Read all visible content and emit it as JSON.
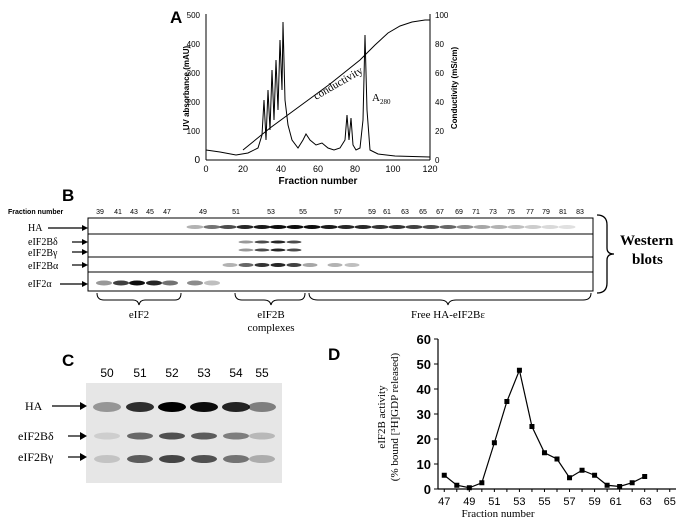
{
  "panels": {
    "A": "A",
    "B": "B",
    "C": "C",
    "D": "D"
  },
  "panel_a": {
    "ylabel_left": "UV absorbance (mAU)",
    "ylabel_right": "Conductivity (mS/cm)",
    "xlabel": "Fraction number",
    "conductivity_label": "conductivity",
    "a280_label": "A",
    "a280_sub": "280",
    "x_ticks": [
      "0",
      "20",
      "40",
      "60",
      "80",
      "100",
      "120"
    ],
    "y_left_ticks": [
      "0",
      "100",
      "200",
      "300",
      "400",
      "500"
    ],
    "y_right_ticks": [
      "0",
      "20",
      "40",
      "60",
      "80",
      "100"
    ]
  },
  "panel_b": {
    "fraction_label": "Fraction number",
    "fractions": [
      "39",
      "41",
      "43",
      "45",
      "47",
      "49",
      "51",
      "53",
      "55",
      "57",
      "59",
      "61",
      "63",
      "65",
      "67",
      "69",
      "71",
      "73",
      "75",
      "77",
      "79",
      "81",
      "83"
    ],
    "rows": [
      "HA",
      "eIF2Bδ",
      "eIF2Bγ",
      "eIF2Bα",
      "eIF2α"
    ],
    "western_1": "Western",
    "western_2": "blots",
    "group_eif2": "eIF2",
    "group_eif2b_1": "eIF2B",
    "group_eif2b_2": "complexes",
    "group_free": "Free HA-eIF2Bε"
  },
  "panel_c": {
    "lanes": [
      "50",
      "51",
      "52",
      "53",
      "54",
      "55"
    ],
    "labels": [
      "HA",
      "eIF2Bδ",
      "eIF2Bγ"
    ]
  },
  "chart_data": {
    "type": "line",
    "title": "",
    "xlabel": "Fraction number",
    "ylabel": "eIF2B activity (% bound [³H]GDP released)",
    "ylabel_line1": "eIF2B activity",
    "ylabel_line2": "(% bound [³H]GDP released)",
    "x_tick_labels": [
      "47",
      "49",
      "51",
      "53",
      "55",
      "57",
      "59",
      "61",
      "63",
      "65"
    ],
    "y_tick_labels": [
      "0",
      "10",
      "20",
      "30",
      "40",
      "50",
      "60"
    ],
    "xlim": [
      46.5,
      65.5
    ],
    "ylim": [
      0,
      60
    ],
    "grid": false,
    "x": [
      47,
      48,
      49,
      50,
      51,
      52,
      53,
      54,
      55,
      56,
      57,
      58,
      59,
      60,
      61,
      62,
      63
    ],
    "values": [
      5.5,
      1.5,
      0.5,
      2.5,
      18.5,
      35,
      47.5,
      25,
      14.5,
      12,
      4.5,
      7.5,
      5.5,
      1.5,
      1.0,
      2.5,
      5.0
    ],
    "marker_color": "#000000"
  }
}
